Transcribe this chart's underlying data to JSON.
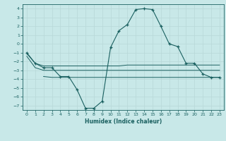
{
  "xlabel": "Humidex (Indice chaleur)",
  "bg_color": "#c8e8e8",
  "grid_color": "#d0e8e8",
  "line_color": "#1a6060",
  "xlim": [
    -0.5,
    23.5
  ],
  "ylim": [
    -7.5,
    4.5
  ],
  "xticks": [
    0,
    1,
    2,
    3,
    4,
    5,
    6,
    7,
    8,
    9,
    10,
    11,
    12,
    13,
    14,
    15,
    16,
    17,
    18,
    19,
    20,
    21,
    22,
    23
  ],
  "yticks": [
    -7,
    -6,
    -5,
    -4,
    -3,
    -2,
    -1,
    0,
    1,
    2,
    3,
    4
  ],
  "main_x": [
    0,
    1,
    2,
    3,
    4,
    5,
    6,
    7,
    8,
    9,
    10,
    11,
    12,
    13,
    14,
    15,
    16,
    17,
    18,
    19,
    20,
    21,
    22,
    23
  ],
  "main_y": [
    -1,
    -2.2,
    -2.7,
    -2.7,
    -3.7,
    -3.7,
    -5.2,
    -7.3,
    -7.3,
    -6.5,
    -0.4,
    1.5,
    2.2,
    3.9,
    4.0,
    3.9,
    2.0,
    0.0,
    -0.3,
    -2.2,
    -2.2,
    -3.4,
    -3.8,
    -3.8
  ],
  "line2_x": [
    0,
    1,
    2,
    3,
    4,
    5,
    6,
    7,
    8,
    9,
    10,
    11,
    12,
    13,
    14,
    15,
    16,
    17,
    18,
    19,
    20,
    21,
    22,
    23
  ],
  "line2_y": [
    -1.1,
    -2.2,
    -2.5,
    -2.5,
    -2.5,
    -2.5,
    -2.5,
    -2.5,
    -2.5,
    -2.5,
    -2.5,
    -2.5,
    -2.4,
    -2.4,
    -2.4,
    -2.4,
    -2.4,
    -2.4,
    -2.4,
    -2.4,
    -2.4,
    -2.4,
    -2.4,
    -2.4
  ],
  "line3_x": [
    0,
    1,
    2,
    3,
    4,
    5,
    6,
    7,
    8,
    9,
    10,
    11,
    12,
    13,
    14,
    15,
    16,
    17,
    18,
    19,
    20,
    21,
    22,
    23
  ],
  "line3_y": [
    -1.4,
    -2.7,
    -3.0,
    -3.0,
    -3.0,
    -3.0,
    -3.0,
    -3.0,
    -3.0,
    -3.0,
    -3.0,
    -3.0,
    -3.0,
    -3.0,
    -3.0,
    -3.0,
    -3.0,
    -3.0,
    -3.0,
    -3.0,
    -3.0,
    -3.0,
    -3.0,
    -3.0
  ],
  "line4_x": [
    2,
    3,
    4,
    5,
    6,
    7,
    8,
    9,
    10,
    11,
    12,
    13,
    14,
    15,
    16,
    17,
    18,
    19,
    20,
    21,
    22,
    23
  ],
  "line4_y": [
    -3.7,
    -3.8,
    -3.8,
    -3.8,
    -3.8,
    -3.8,
    -3.8,
    -3.8,
    -3.8,
    -3.8,
    -3.8,
    -3.8,
    -3.8,
    -3.8,
    -3.8,
    -3.8,
    -3.8,
    -3.8,
    -3.8,
    -3.8,
    -3.8,
    -3.8
  ]
}
